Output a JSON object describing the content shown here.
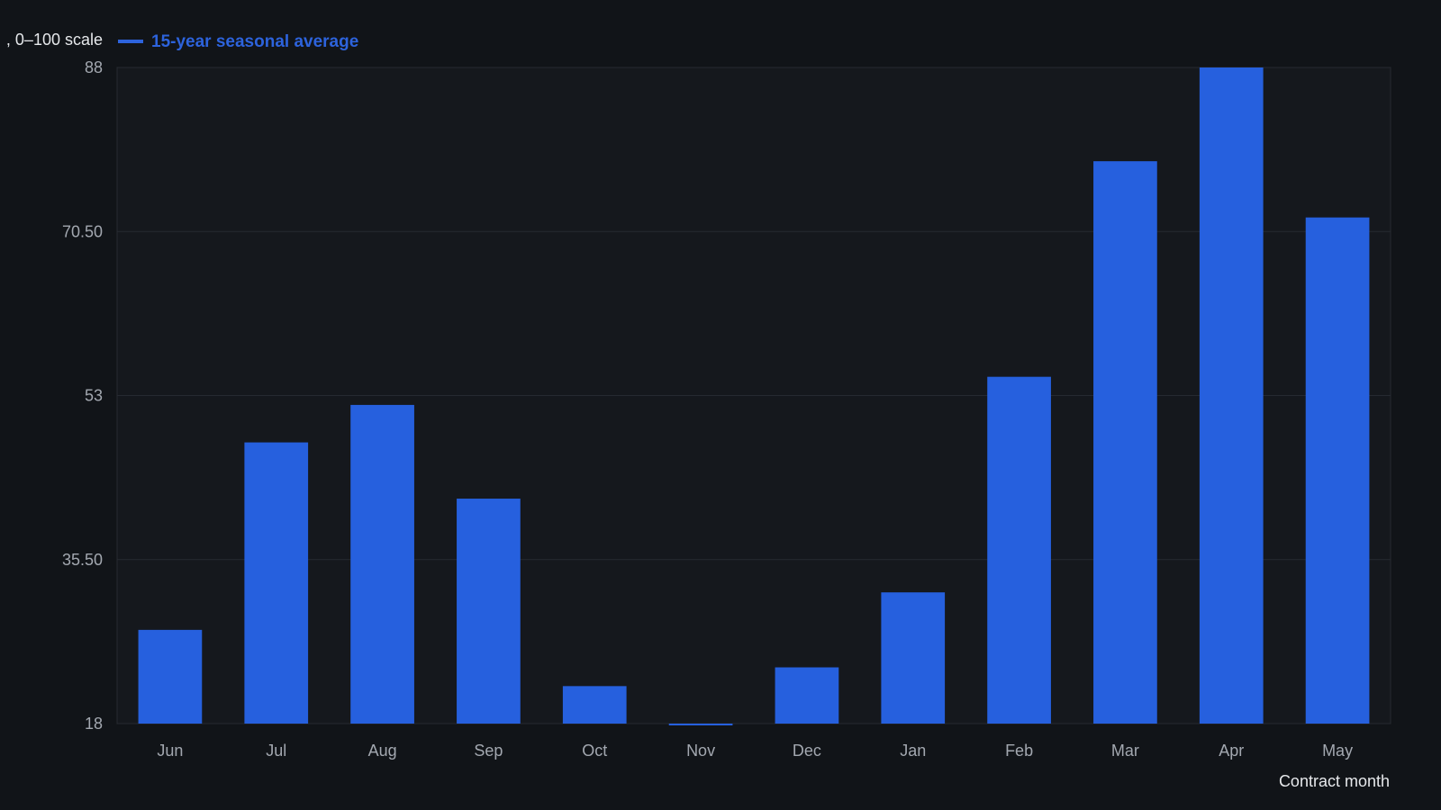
{
  "colors": {
    "background": "#111418",
    "plot_background": "#15181d",
    "bar": "#2660de",
    "grid": "#262a31",
    "tick_text": "#a3a8b0",
    "axis_title_text": "#e6e8eb",
    "legend_text": "#2d63dc"
  },
  "legend": {
    "items": [
      {
        "label": ", 0–100 scale",
        "color": "#e6e8eb",
        "swatch": false
      },
      {
        "label": "15-year seasonal average",
        "color": "#2d63dc",
        "swatch": true
      }
    ],
    "placement": "top-left"
  },
  "chart_data": {
    "type": "bar",
    "title": "",
    "xlabel": "Contract month",
    "ylabel": "",
    "categories": [
      "Jun",
      "Jul",
      "Aug",
      "Sep",
      "Oct",
      "Nov",
      "Dec",
      "Jan",
      "Feb",
      "Mar",
      "Apr",
      "May"
    ],
    "series": [
      {
        "name": "15-year seasonal average",
        "values": [
          28,
          48,
          52,
          42,
          22,
          17.8,
          24,
          32,
          55,
          78,
          88,
          72
        ]
      }
    ],
    "ylim": [
      18,
      88
    ],
    "yticks": [
      18,
      35.5,
      53,
      70.5,
      88
    ],
    "ytick_labels": [
      "18",
      "35.50",
      "53",
      "70.50",
      "88"
    ],
    "grid": true
  }
}
